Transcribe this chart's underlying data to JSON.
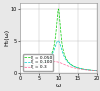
{
  "title": "",
  "xlabel": "ω",
  "ylabel": "H₁(ω)",
  "omega_n": 10,
  "omega_range": [
    0.01,
    20
  ],
  "damping_ratios": [
    0.05,
    0.1,
    0.3
  ],
  "line_colors": [
    "#00cc00",
    "#00cccc",
    "#ff6699"
  ],
  "line_styles": [
    "--",
    "--",
    "--"
  ],
  "legend_labels": [
    "ξ = 0.050",
    "ξ = 0.100",
    "ξ = 0.3"
  ],
  "ylim": [
    0,
    11
  ],
  "xlim": [
    0,
    20
  ],
  "yticks": [
    0,
    5,
    10
  ],
  "xticks": [
    0,
    5,
    10,
    15,
    20
  ],
  "background_color": "#e8e8e8",
  "plot_bg_color": "#ffffff",
  "grid_color": "#bbbbbb",
  "legend_fontsize": 3.2,
  "axis_fontsize": 4.5,
  "tick_fontsize": 3.5,
  "linewidth": 0.5
}
